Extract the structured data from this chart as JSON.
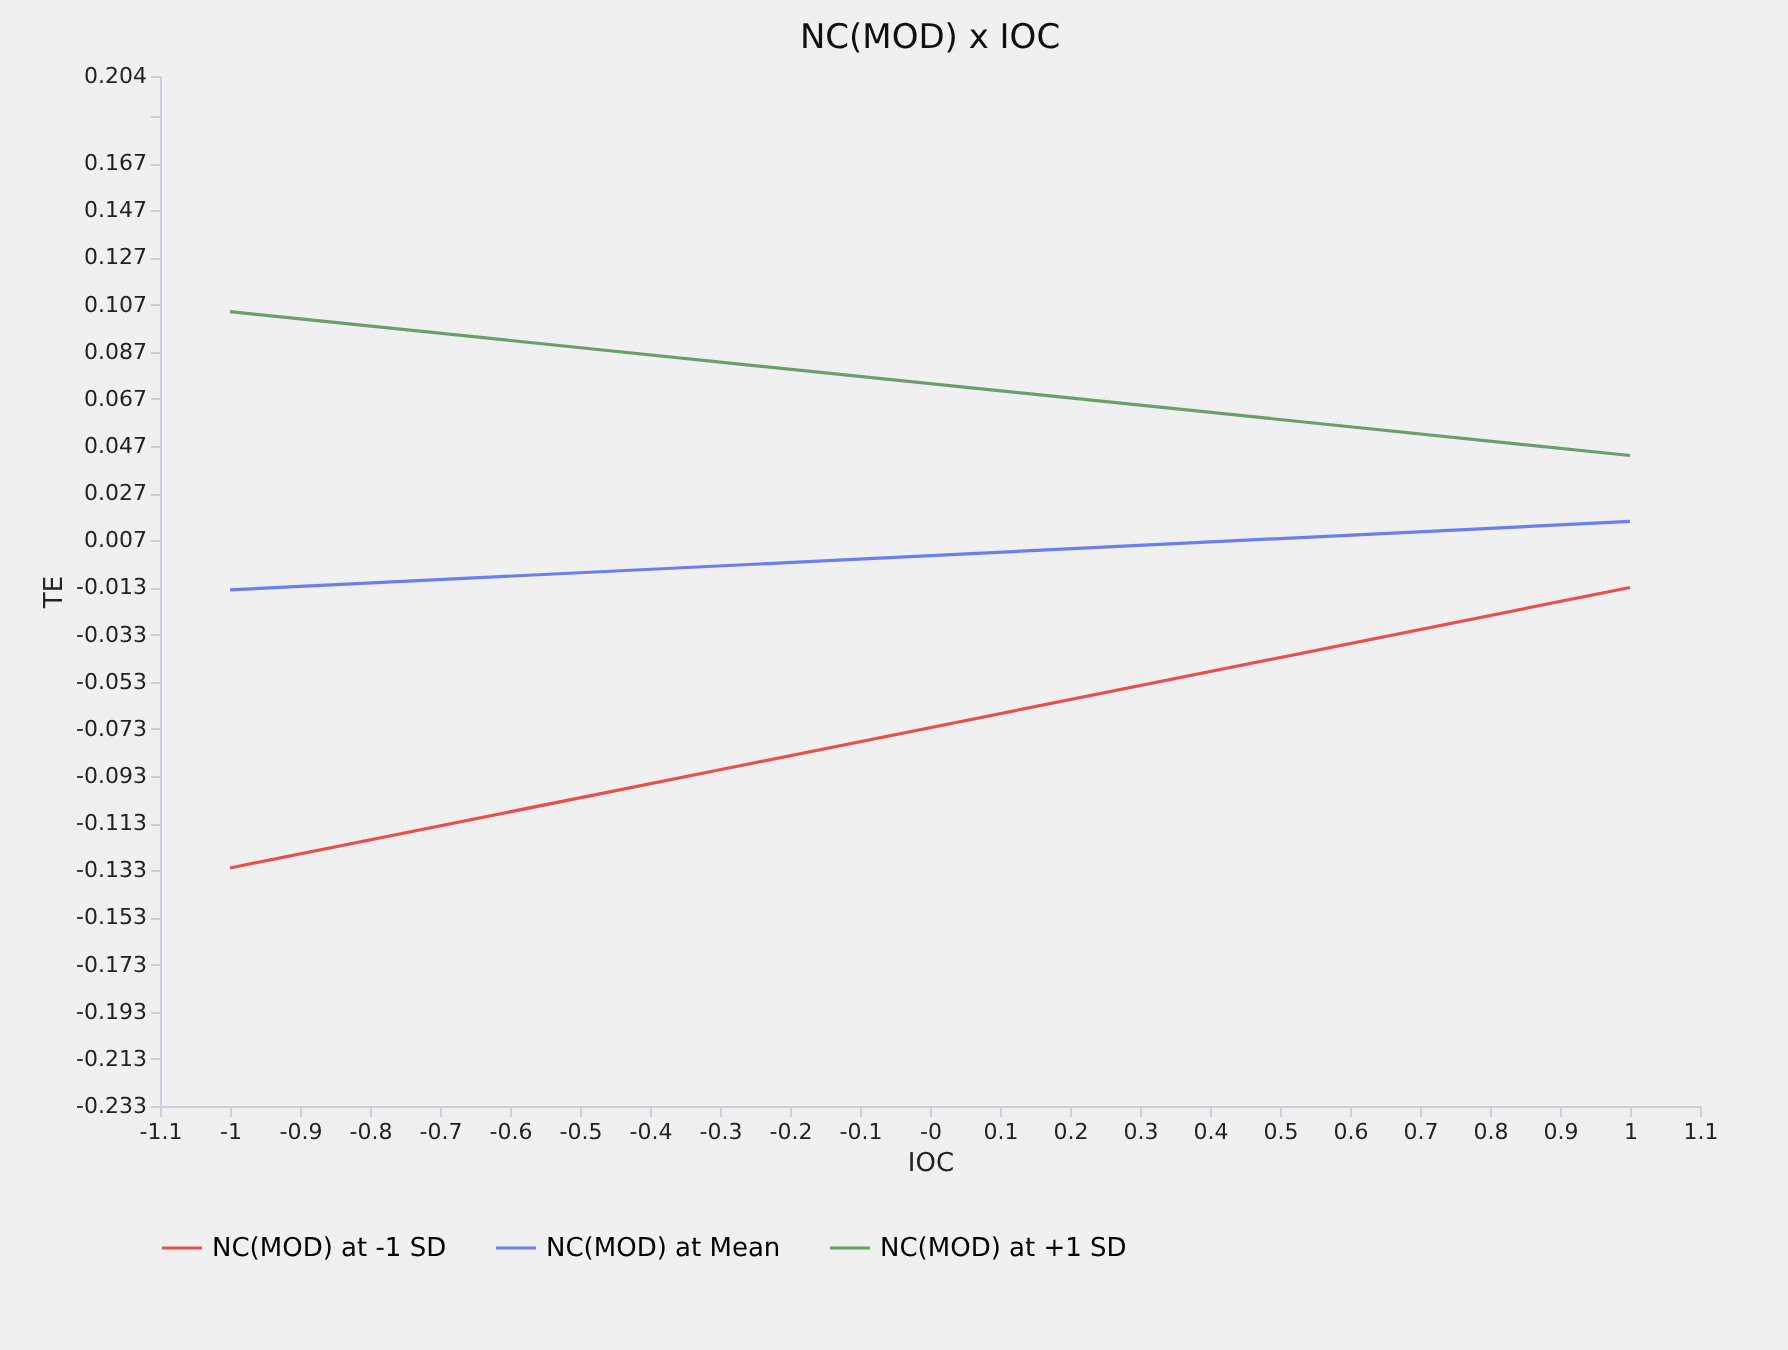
{
  "chart_data": {
    "type": "line",
    "title": "NC(MOD) x IOC",
    "xlabel": "IOC",
    "ylabel": "TE",
    "x": [
      -1,
      1
    ],
    "series": [
      {
        "name": "NC(MOD) at -1 SD",
        "color": "#e8504f",
        "values": [
          -0.132,
          -0.013
        ]
      },
      {
        "name": "NC(MOD) at Mean",
        "color": "#6b7ff0",
        "values": [
          -0.014,
          0.015
        ]
      },
      {
        "name": "NC(MOD) at +1 SD",
        "color": "#6a9e6a",
        "values": [
          0.104,
          0.043
        ]
      }
    ],
    "xlim": [
      -1.1,
      1.1
    ],
    "xticks": [
      -1.1,
      -1,
      -0.9,
      -0.8,
      -0.7,
      -0.6,
      -0.5,
      -0.4,
      -0.3,
      -0.2,
      -0.1,
      {
        "value": 0,
        "label": "-0"
      },
      0.1,
      0.2,
      0.3,
      0.4,
      0.5,
      0.6,
      0.7,
      0.8,
      0.9,
      1,
      1.1
    ],
    "ylim": [
      -0.233,
      0.204
    ],
    "yticks": [
      -0.233,
      -0.213,
      -0.193,
      -0.173,
      -0.153,
      -0.133,
      -0.113,
      -0.093,
      -0.073,
      -0.053,
      -0.033,
      -0.013,
      0.007,
      0.027,
      0.047,
      0.067,
      0.087,
      0.107,
      0.127,
      0.147,
      0.167,
      {
        "value": 0.187,
        "label": null
      },
      0.204
    ],
    "grid": false,
    "legend": "bottom",
    "marker": "none",
    "line_style": "solid"
  }
}
